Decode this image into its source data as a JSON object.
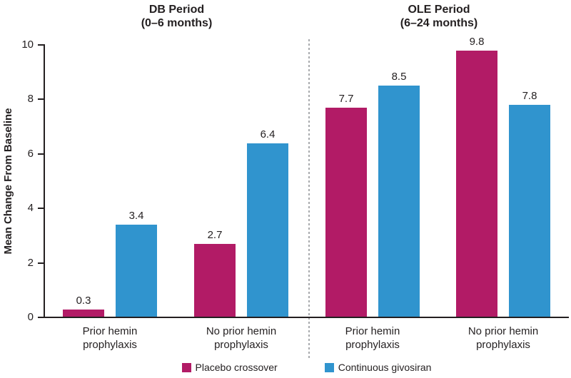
{
  "chart_data": {
    "type": "bar",
    "panels": [
      {
        "title_line1": "DB Period",
        "title_line2": "(0–6 months)"
      },
      {
        "title_line1": "OLE Period",
        "title_line2": "(6–24 months)"
      }
    ],
    "ylabel": "Mean Change From Baseline",
    "ylim": [
      0,
      10
    ],
    "yticks": [
      0,
      2,
      4,
      6,
      8,
      10
    ],
    "grid": false,
    "legend_position": "bottom",
    "categories": [
      [
        "Prior hemin",
        "prophylaxis"
      ],
      [
        "No prior hemin",
        "prophylaxis"
      ],
      [
        "Prior hemin",
        "prophylaxis"
      ],
      [
        "No prior hemin",
        "prophylaxis"
      ]
    ],
    "series": [
      {
        "name": "Placebo crossover",
        "color": "#B21B66",
        "values": [
          0.3,
          2.7,
          7.7,
          9.8
        ]
      },
      {
        "name": "Continuous givosiran",
        "color": "#3094CE",
        "values": [
          3.4,
          6.4,
          8.5,
          7.8
        ]
      }
    ],
    "colors": {
      "axis": "#231F20",
      "text": "#231F20",
      "divider": "#A9ABAE"
    }
  }
}
